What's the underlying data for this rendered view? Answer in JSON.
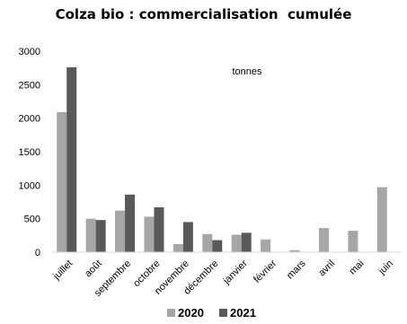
{
  "chart_data": {
    "type": "bar",
    "title": "Colza bio : commercialisation  cumulée",
    "annotation": "tonnes",
    "categories": [
      "juillet",
      "août",
      "septembre",
      "octobre",
      "novembre",
      "décembre",
      "janvier",
      "février",
      "mars",
      "avril",
      "mai",
      "juin"
    ],
    "series": [
      {
        "name": "2020",
        "color": "#a6a6a6",
        "values": [
          2090,
          500,
          620,
          530,
          120,
          270,
          260,
          190,
          30,
          360,
          320,
          970
        ]
      },
      {
        "name": "2021",
        "color": "#595959",
        "values": [
          2760,
          480,
          860,
          670,
          450,
          180,
          290,
          null,
          null,
          null,
          null,
          null
        ]
      }
    ],
    "yticks": [
      0,
      500,
      1000,
      1500,
      2000,
      2500,
      3000
    ],
    "ylim": [
      0,
      3000
    ],
    "grid": false,
    "legend_position": "bottom"
  }
}
